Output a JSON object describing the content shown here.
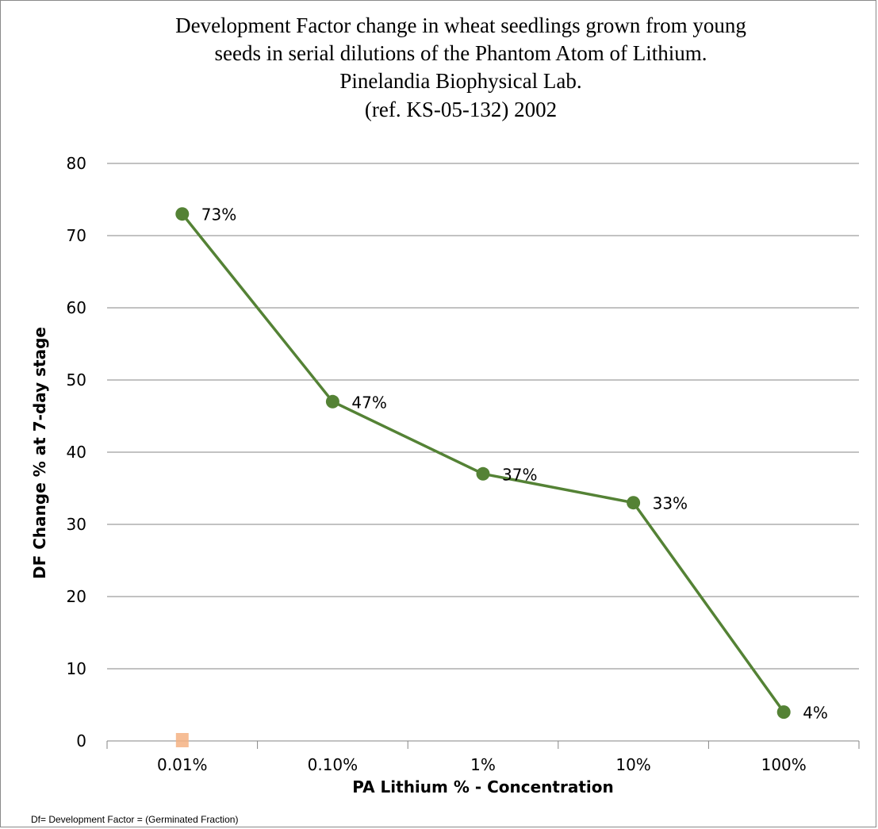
{
  "chart_data": {
    "type": "line",
    "title_lines": [
      "Development Factor change in wheat seedlings grown from young",
      "seeds in serial dilutions of the Phantom Atom of Lithium.",
      "Pinelandia Biophysical Lab.",
      "(ref. KS-05-132) 2002"
    ],
    "xlabel": "PA Lithium % - Concentration",
    "ylabel": "DF Change % at 7-day stage",
    "categories": [
      "0.01%",
      "0.10%",
      "1%",
      "10%",
      "100%"
    ],
    "series": [
      {
        "values": [
          73,
          47,
          37,
          33,
          4
        ],
        "data_labels": [
          "73%",
          "47%",
          "37%",
          "33%",
          "4%"
        ],
        "color": "#548235"
      }
    ],
    "ylim": [
      0,
      80
    ],
    "yticks": [
      0,
      10,
      20,
      30,
      40,
      50,
      60,
      70,
      80
    ],
    "grid": true,
    "legend": "none",
    "stray_marker_color": "#f4b183",
    "footnote": "Df= Development Factor = (Germinated Fraction)"
  }
}
